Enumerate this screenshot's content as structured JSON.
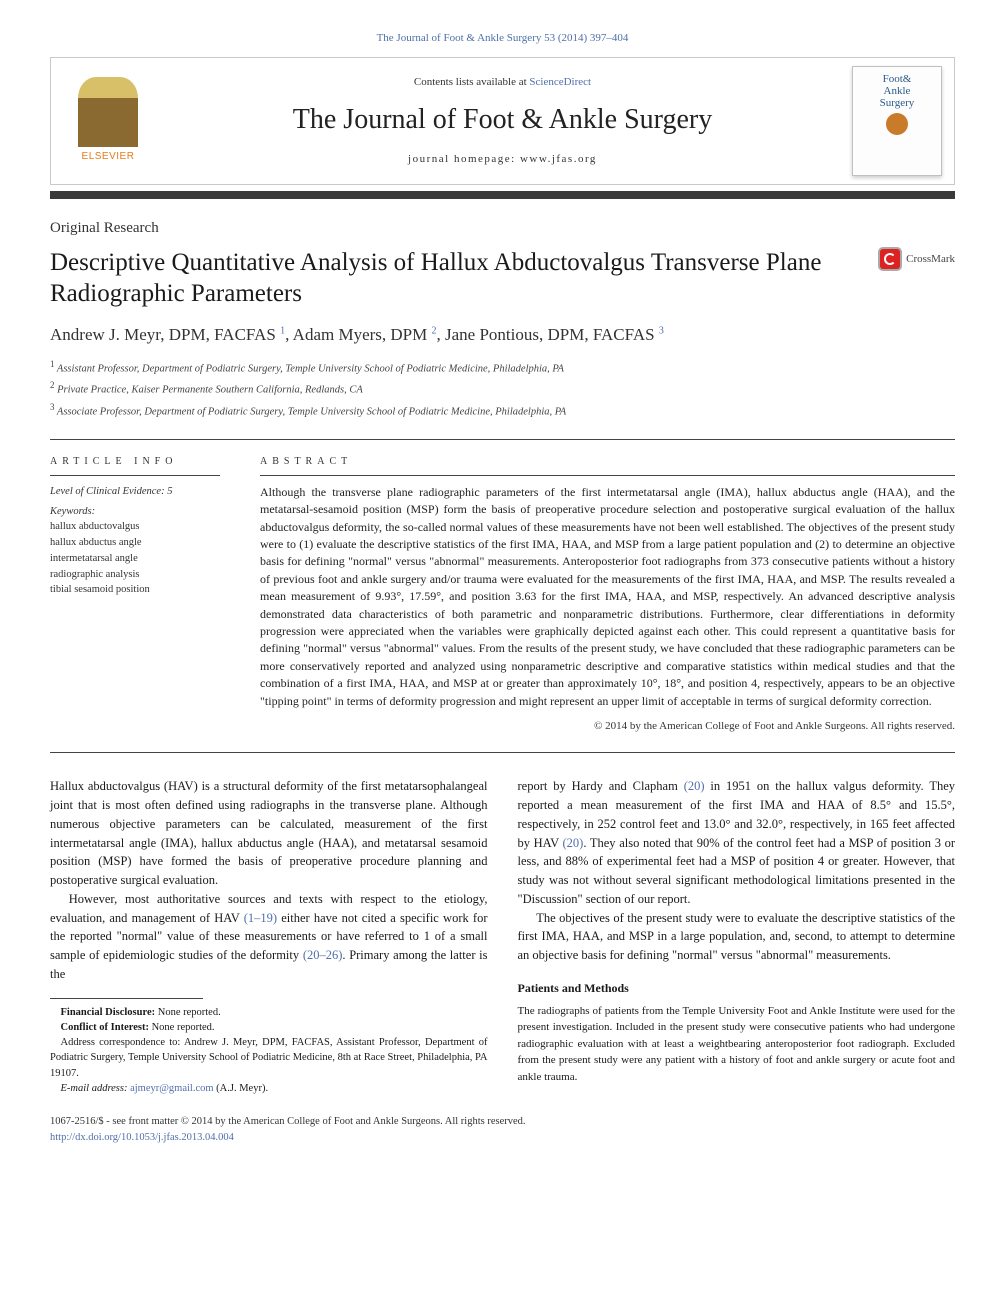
{
  "colors": {
    "link": "#506faa",
    "bar": "#3a3a3a",
    "text": "#1a1a1a",
    "publisher_orange": "#e67a17"
  },
  "top_link": "The Journal of Foot & Ankle Surgery 53 (2014) 397–404",
  "header": {
    "publisher": "ELSEVIER",
    "contents_prefix": "Contents lists available at ",
    "contents_link": "ScienceDirect",
    "journal_name": "The Journal of Foot & Ankle Surgery",
    "homepage_label": "journal homepage: www.jfas.org",
    "cover_title_1": "Foot&",
    "cover_title_2": "Ankle",
    "cover_title_3": "Surgery"
  },
  "article_type": "Original Research",
  "title": "Descriptive Quantitative Analysis of Hallux Abductovalgus Transverse Plane Radiographic Parameters",
  "crossmark": "CrossMark",
  "authors_html": "Andrew J. Meyr, DPM, FACFAS <sup>1</sup>, Adam Myers, DPM <sup>2</sup>, Jane Pontious, DPM, FACFAS <sup>3</sup>",
  "affiliations": [
    "Assistant Professor, Department of Podiatric Surgery, Temple University School of Podiatric Medicine, Philadelphia, PA",
    "Private Practice, Kaiser Permanente Southern California, Redlands, CA",
    "Associate Professor, Department of Podiatric Surgery, Temple University School of Podiatric Medicine, Philadelphia, PA"
  ],
  "info": {
    "heading": "article info",
    "evidence": "Level of Clinical Evidence: 5",
    "keywords_label": "Keywords:",
    "keywords": [
      "hallux abductovalgus",
      "hallux abductus angle",
      "intermetatarsal angle",
      "radiographic analysis",
      "tibial sesamoid position"
    ]
  },
  "abstract": {
    "heading": "abstract",
    "text": "Although the transverse plane radiographic parameters of the first intermetatarsal angle (IMA), hallux abductus angle (HAA), and the metatarsal-sesamoid position (MSP) form the basis of preoperative procedure selection and postoperative surgical evaluation of the hallux abductovalgus deformity, the so-called normal values of these measurements have not been well established. The objectives of the present study were to (1) evaluate the descriptive statistics of the first IMA, HAA, and MSP from a large patient population and (2) to determine an objective basis for defining \"normal\" versus \"abnormal\" measurements. Anteroposterior foot radiographs from 373 consecutive patients without a history of previous foot and ankle surgery and/or trauma were evaluated for the measurements of the first IMA, HAA, and MSP. The results revealed a mean measurement of 9.93°, 17.59°, and position 3.63 for the first IMA, HAA, and MSP, respectively. An advanced descriptive analysis demonstrated data characteristics of both parametric and nonparametric distributions. Furthermore, clear differentiations in deformity progression were appreciated when the variables were graphically depicted against each other. This could represent a quantitative basis for defining \"normal\" versus \"abnormal\" values. From the results of the present study, we have concluded that these radiographic parameters can be more conservatively reported and analyzed using nonparametric descriptive and comparative statistics within medical studies and that the combination of a first IMA, HAA, and MSP at or greater than approximately 10°, 18°, and position 4, respectively, appears to be an objective \"tipping point\" in terms of deformity progression and might represent an upper limit of acceptable in terms of surgical deformity correction.",
    "copyright": "© 2014 by the American College of Foot and Ankle Surgeons. All rights reserved."
  },
  "body": {
    "p1": "Hallux abductovalgus (HAV) is a structural deformity of the first metatarsophalangeal joint that is most often defined using radiographs in the transverse plane. Although numerous objective parameters can be calculated, measurement of the first intermetatarsal angle (IMA), hallux abductus angle (HAA), and metatarsal sesamoid position (MSP) have formed the basis of preoperative procedure planning and postoperative surgical evaluation.",
    "p2a": "However, most authoritative sources and texts with respect to the etiology, evaluation, and management of HAV ",
    "p2_link1": "(1–19)",
    "p2b": " either have not cited a specific work for the reported \"normal\" value of these measurements or have referred to 1 of a small sample of epidemiologic studies of the deformity ",
    "p2_link2": "(20–26)",
    "p2c": ". Primary among the latter is the",
    "p3a": "report by Hardy and Clapham ",
    "p3_link1": "(20)",
    "p3b": " in 1951 on the hallux valgus deformity. They reported a mean measurement of the first IMA and HAA of 8.5° and 15.5°, respectively, in 252 control feet and 13.0° and 32.0°, respectively, in 165 feet affected by HAV ",
    "p3_link2": "(20)",
    "p3c": ". They also noted that 90% of the control feet had a MSP of position 3 or less, and 88% of experimental feet had a MSP of position 4 or greater. However, that study was not without several significant methodological limitations presented in the \"Discussion\" section of our report.",
    "p4": "The objectives of the present study were to evaluate the descriptive statistics of the first IMA, HAA, and MSP in a large population, and, second, to attempt to determine an objective basis for defining \"normal\" versus \"abnormal\" measurements.",
    "methods_head": "Patients and Methods",
    "methods_p": "The radiographs of patients from the Temple University Foot and Ankle Institute were used for the present investigation. Included in the present study were consecutive patients who had undergone radiographic evaluation with at least a weightbearing anteroposterior foot radiograph. Excluded from the present study were any patient with a history of foot and ankle surgery or acute foot and ankle trauma."
  },
  "footnotes": {
    "financial_label": "Financial Disclosure:",
    "financial": " None reported.",
    "conflict_label": "Conflict of Interest:",
    "conflict": " None reported.",
    "correspondence": "Address correspondence to: Andrew J. Meyr, DPM, FACFAS, Assistant Professor, Department of Podiatric Surgery, Temple University School of Podiatric Medicine, 8th at Race Street, Philadelphia, PA 19107.",
    "email_label": "E-mail address: ",
    "email": "ajmeyr@gmail.com",
    "email_tail": " (A.J. Meyr)."
  },
  "bottom": {
    "issn_line": "1067-2516/$ - see front matter © 2014 by the American College of Foot and Ankle Surgeons. All rights reserved.",
    "doi": "http://dx.doi.org/10.1053/j.jfas.2013.04.004"
  }
}
